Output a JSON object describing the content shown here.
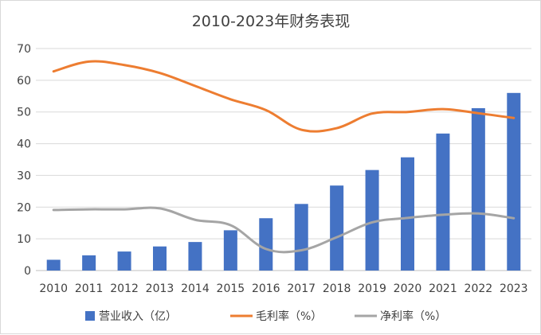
{
  "chart_data": {
    "type": "bar+line",
    "title": "2010-2023年财务表现",
    "categories": [
      "2010",
      "2011",
      "2012",
      "2013",
      "2014",
      "2015",
      "2016",
      "2017",
      "2018",
      "2019",
      "2020",
      "2021",
      "2022",
      "2023"
    ],
    "ylim": [
      0,
      70
    ],
    "yticks": [
      "0",
      "10",
      "20",
      "30",
      "40",
      "50",
      "60",
      "70"
    ],
    "grid": true,
    "legend_position": "bottom",
    "series": [
      {
        "name": "营业收入（亿）",
        "type": "bar",
        "color": "#4472C4",
        "values": [
          3.4,
          4.8,
          6.0,
          7.6,
          9.0,
          12.7,
          16.5,
          21.0,
          26.8,
          31.7,
          35.7,
          43.2,
          51.2,
          56.0
        ]
      },
      {
        "name": "毛利率（%）",
        "type": "line",
        "color": "#ED7D31",
        "values": [
          62.8,
          65.9,
          64.8,
          62.3,
          58.2,
          54.0,
          50.6,
          44.4,
          44.9,
          49.5,
          50.0,
          50.9,
          49.6,
          48.1
        ]
      },
      {
        "name": "净利率（%）",
        "type": "line",
        "color": "#A5A5A5",
        "values": [
          19.1,
          19.3,
          19.3,
          19.6,
          16.0,
          14.3,
          6.8,
          6.4,
          10.5,
          15.2,
          16.6,
          17.6,
          18.0,
          16.5
        ]
      }
    ]
  }
}
